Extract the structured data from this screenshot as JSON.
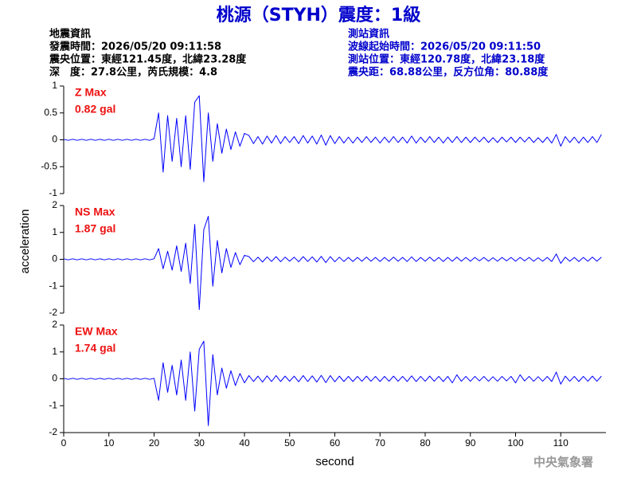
{
  "title": "桃源（STYH）震度：1級",
  "info_left": [
    "地震資訊",
    "發震時間：2026/05/20 09:11:58",
    "震央位置：東經121.45度，北緯23.28度",
    "深　度：27.8公里，芮氏規模：4.8"
  ],
  "info_right": [
    "測站資訊",
    "波線起始時間：2026/05/20 09:11:50",
    "測站位置：東經120.78度，北緯23.18度",
    "震央距：68.88公里，反方位角：80.88度"
  ],
  "y_label": "acceleration",
  "watermark": "中央氣象署",
  "chart_data": [
    {
      "type": "line",
      "panel_label": "Z Max",
      "max_label": "0.82 gal",
      "color": "#0000ff",
      "xlim": [
        0,
        120
      ],
      "ylim": [
        -1,
        1
      ],
      "yticks": [
        -1,
        -0.5,
        0,
        0.5,
        1
      ],
      "x": [
        0,
        1,
        2,
        3,
        4,
        5,
        6,
        7,
        8,
        9,
        10,
        11,
        12,
        13,
        14,
        15,
        16,
        17,
        18,
        19,
        20,
        21,
        22,
        23,
        24,
        25,
        26,
        27,
        28,
        29,
        30,
        31,
        32,
        33,
        34,
        35,
        36,
        37,
        38,
        39,
        40,
        41,
        42,
        43,
        44,
        45,
        46,
        47,
        48,
        49,
        50,
        51,
        52,
        53,
        54,
        55,
        56,
        57,
        58,
        59,
        60,
        61,
        62,
        63,
        64,
        65,
        66,
        67,
        68,
        69,
        70,
        71,
        72,
        73,
        74,
        75,
        76,
        77,
        78,
        79,
        80,
        81,
        82,
        83,
        84,
        85,
        86,
        87,
        88,
        89,
        90,
        91,
        92,
        93,
        94,
        95,
        96,
        97,
        98,
        99,
        100,
        101,
        102,
        103,
        104,
        105,
        106,
        107,
        108,
        109,
        110,
        111,
        112,
        113,
        114,
        115,
        116,
        117,
        118,
        119
      ],
      "values": [
        0.01,
        -0.01,
        0.01,
        -0.01,
        0.01,
        -0.01,
        0.01,
        -0.01,
        0.01,
        -0.01,
        0.01,
        -0.01,
        0.01,
        -0.01,
        0.01,
        -0.01,
        0.01,
        -0.01,
        0.01,
        -0.01,
        0.02,
        0.5,
        -0.6,
        0.45,
        -0.4,
        0.4,
        -0.5,
        0.45,
        -0.55,
        0.7,
        0.82,
        -0.78,
        0.5,
        -0.4,
        0.3,
        -0.25,
        0.2,
        -0.18,
        0.15,
        -0.12,
        0.12,
        0.08,
        -0.07,
        0.06,
        -0.08,
        0.07,
        -0.06,
        0.08,
        -0.07,
        0.06,
        -0.05,
        0.06,
        -0.07,
        0.08,
        -0.06,
        0.07,
        -0.08,
        0.09,
        -0.1,
        0.08,
        -0.07,
        0.06,
        -0.06,
        0.05,
        -0.06,
        0.05,
        -0.05,
        0.06,
        -0.05,
        0.05,
        -0.06,
        0.05,
        -0.05,
        0.06,
        -0.05,
        0.05,
        -0.06,
        0.07,
        -0.06,
        0.05,
        -0.05,
        0.06,
        -0.05,
        0.05,
        -0.06,
        0.05,
        -0.05,
        0.06,
        -0.05,
        0.05,
        -0.05,
        0.05,
        -0.04,
        0.05,
        -0.05,
        0.04,
        -0.05,
        0.05,
        -0.04,
        0.05,
        -0.05,
        0.05,
        -0.04,
        0.05,
        -0.05,
        0.04,
        -0.05,
        0.05,
        -0.06,
        0.1,
        -0.12,
        0.06,
        -0.05,
        0.05,
        -0.06,
        0.05,
        -0.05,
        0.06,
        -0.05,
        0.1
      ]
    },
    {
      "type": "line",
      "panel_label": "NS Max",
      "max_label": "1.87 gal",
      "color": "#0000ff",
      "xlim": [
        0,
        120
      ],
      "ylim": [
        -2,
        2
      ],
      "yticks": [
        -2,
        -1,
        0,
        1,
        2
      ],
      "x": [
        0,
        1,
        2,
        3,
        4,
        5,
        6,
        7,
        8,
        9,
        10,
        11,
        12,
        13,
        14,
        15,
        16,
        17,
        18,
        19,
        20,
        21,
        22,
        23,
        24,
        25,
        26,
        27,
        28,
        29,
        30,
        31,
        32,
        33,
        34,
        35,
        36,
        37,
        38,
        39,
        40,
        41,
        42,
        43,
        44,
        45,
        46,
        47,
        48,
        49,
        50,
        51,
        52,
        53,
        54,
        55,
        56,
        57,
        58,
        59,
        60,
        61,
        62,
        63,
        64,
        65,
        66,
        67,
        68,
        69,
        70,
        71,
        72,
        73,
        74,
        75,
        76,
        77,
        78,
        79,
        80,
        81,
        82,
        83,
        84,
        85,
        86,
        87,
        88,
        89,
        90,
        91,
        92,
        93,
        94,
        95,
        96,
        97,
        98,
        99,
        100,
        101,
        102,
        103,
        104,
        105,
        106,
        107,
        108,
        109,
        110,
        111,
        112,
        113,
        114,
        115,
        116,
        117,
        118,
        119
      ],
      "values": [
        0.02,
        -0.02,
        0.02,
        -0.02,
        0.02,
        -0.02,
        0.02,
        -0.02,
        0.02,
        -0.02,
        0.02,
        -0.02,
        0.02,
        -0.02,
        0.02,
        -0.02,
        0.02,
        -0.02,
        0.02,
        -0.02,
        0.02,
        0.4,
        -0.35,
        0.3,
        -0.4,
        0.5,
        -0.45,
        0.6,
        -0.9,
        1.3,
        -1.87,
        1.1,
        1.6,
        -1.0,
        0.7,
        -0.5,
        0.4,
        -0.3,
        0.25,
        -0.2,
        0.15,
        0.1,
        -0.09,
        0.08,
        -0.1,
        0.09,
        -0.08,
        0.1,
        -0.09,
        0.08,
        -0.07,
        0.08,
        -0.09,
        0.1,
        -0.08,
        0.09,
        -0.1,
        0.11,
        -0.12,
        0.1,
        -0.09,
        0.08,
        -0.08,
        0.07,
        -0.08,
        0.07,
        -0.07,
        0.08,
        -0.07,
        0.07,
        -0.08,
        0.07,
        -0.07,
        0.08,
        -0.07,
        0.07,
        -0.08,
        0.09,
        -0.08,
        0.07,
        -0.07,
        0.08,
        -0.07,
        0.07,
        -0.08,
        0.07,
        -0.07,
        0.08,
        -0.07,
        0.07,
        -0.07,
        0.07,
        -0.06,
        0.07,
        -0.07,
        0.06,
        -0.07,
        0.07,
        -0.06,
        0.07,
        -0.07,
        0.07,
        -0.06,
        0.07,
        -0.07,
        0.06,
        -0.07,
        0.07,
        -0.08,
        0.2,
        -0.15,
        0.08,
        -0.07,
        0.07,
        -0.08,
        0.07,
        -0.07,
        0.08,
        -0.07,
        0.08
      ]
    },
    {
      "type": "line",
      "panel_label": "EW Max",
      "max_label": "1.74 gal",
      "color": "#0000ff",
      "xlim": [
        0,
        120
      ],
      "ylim": [
        -2,
        2
      ],
      "yticks": [
        -2,
        -1,
        0,
        1,
        2
      ],
      "xticks": [
        0,
        10,
        20,
        30,
        40,
        50,
        60,
        70,
        80,
        90,
        100,
        110
      ],
      "xlabel": "second",
      "x": [
        0,
        1,
        2,
        3,
        4,
        5,
        6,
        7,
        8,
        9,
        10,
        11,
        12,
        13,
        14,
        15,
        16,
        17,
        18,
        19,
        20,
        21,
        22,
        23,
        24,
        25,
        26,
        27,
        28,
        29,
        30,
        31,
        32,
        33,
        34,
        35,
        36,
        37,
        38,
        39,
        40,
        41,
        42,
        43,
        44,
        45,
        46,
        47,
        48,
        49,
        50,
        51,
        52,
        53,
        54,
        55,
        56,
        57,
        58,
        59,
        60,
        61,
        62,
        63,
        64,
        65,
        66,
        67,
        68,
        69,
        70,
        71,
        72,
        73,
        74,
        75,
        76,
        77,
        78,
        79,
        80,
        81,
        82,
        83,
        84,
        85,
        86,
        87,
        88,
        89,
        90,
        91,
        92,
        93,
        94,
        95,
        96,
        97,
        98,
        99,
        100,
        101,
        102,
        103,
        104,
        105,
        106,
        107,
        108,
        109,
        110,
        111,
        112,
        113,
        114,
        115,
        116,
        117,
        118,
        119
      ],
      "values": [
        0.02,
        -0.02,
        0.02,
        -0.02,
        0.02,
        -0.02,
        0.02,
        -0.02,
        0.02,
        -0.02,
        0.02,
        -0.02,
        0.02,
        -0.02,
        0.02,
        -0.02,
        0.02,
        -0.02,
        0.02,
        -0.02,
        0.02,
        -0.8,
        0.6,
        -0.5,
        0.5,
        -0.6,
        0.7,
        -0.8,
        1.0,
        -1.2,
        1.1,
        1.4,
        -1.74,
        0.9,
        -0.6,
        0.4,
        -0.35,
        0.3,
        -0.25,
        0.2,
        -0.15,
        0.12,
        -0.1,
        0.1,
        -0.12,
        0.11,
        -0.1,
        0.12,
        -0.1,
        0.1,
        -0.09,
        0.1,
        -0.11,
        0.12,
        -0.1,
        0.11,
        -0.12,
        0.13,
        -0.14,
        0.12,
        -0.11,
        0.1,
        -0.1,
        0.09,
        -0.1,
        0.09,
        -0.09,
        0.1,
        -0.09,
        0.09,
        -0.1,
        0.09,
        -0.09,
        0.1,
        -0.09,
        0.09,
        -0.1,
        0.11,
        -0.1,
        0.09,
        -0.09,
        0.1,
        -0.09,
        0.09,
        -0.1,
        0.09,
        -0.15,
        0.15,
        -0.09,
        0.09,
        -0.09,
        0.09,
        -0.08,
        0.09,
        -0.09,
        0.08,
        -0.09,
        0.09,
        -0.08,
        0.09,
        -0.15,
        0.15,
        -0.08,
        0.09,
        -0.09,
        0.08,
        -0.09,
        0.09,
        -0.1,
        0.25,
        -0.2,
        0.1,
        -0.09,
        0.09,
        -0.1,
        0.09,
        -0.09,
        0.1,
        -0.09,
        0.1
      ]
    }
  ]
}
